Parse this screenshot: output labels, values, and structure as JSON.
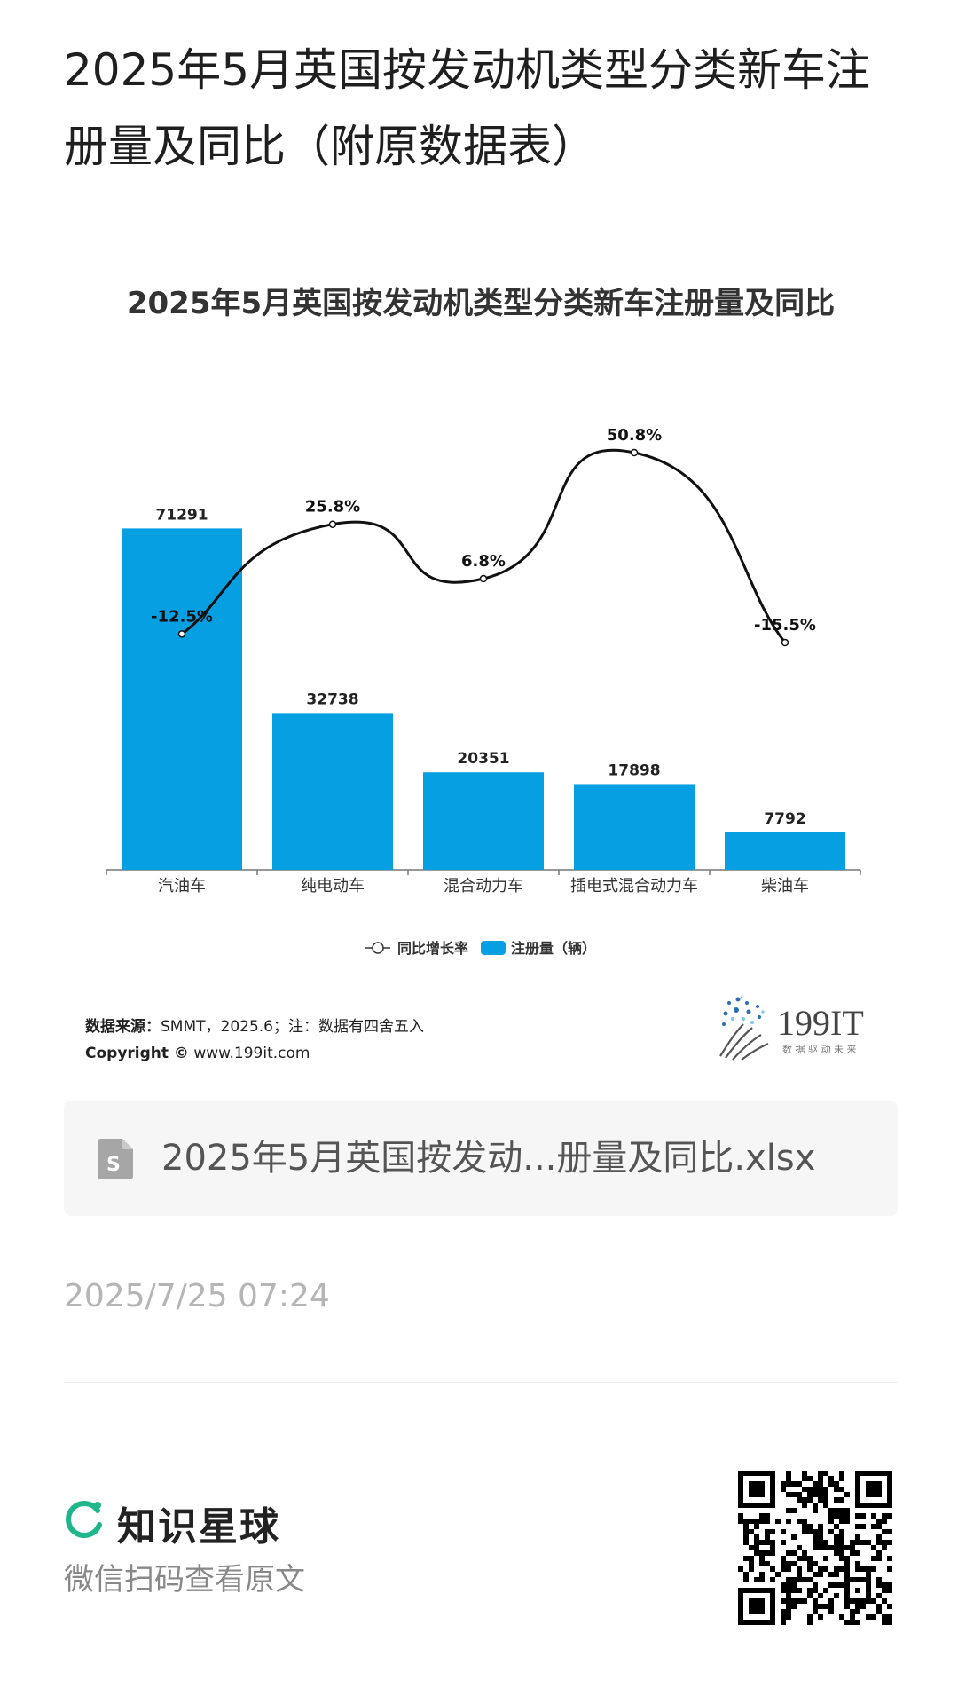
{
  "page": {
    "title": "2025年5月英国按发动机类型分类新车注册量及同比（附原数据表）"
  },
  "chart_data": {
    "type": "bar",
    "title": "2025年5月英国按发动机类型分类新车注册量及同比",
    "categories": [
      "汽油车",
      "纯电动车",
      "混合动力车",
      "插电式混合动力车",
      "柴油车"
    ],
    "series": [
      {
        "name": "注册量（辆）",
        "type": "bar",
        "values": [
          71291,
          32738,
          20351,
          17898,
          7792
        ],
        "labels": [
          "71291",
          "32738",
          "20351",
          "17898",
          "7792"
        ],
        "color": "#069FE2"
      },
      {
        "name": "同比增长率",
        "type": "line",
        "values": [
          -12.5,
          25.8,
          6.8,
          50.8,
          -15.5
        ],
        "labels": [
          "-12.5%",
          "25.8%",
          "6.8%",
          "50.8%",
          "-15.5%"
        ],
        "color": "#111111"
      }
    ],
    "legend": {
      "position": "bottom",
      "line_label": "同比增长率",
      "bar_label": "注册量（辆）"
    }
  },
  "source": {
    "label": "数据来源：",
    "text": "SMMT，2025.6；注：数据有四舍五入",
    "copyright_label": "Copyright ©",
    "copyright_text": "www.199it.com"
  },
  "logo": {
    "text": "199IT",
    "tagline": "数 据 驱 动 未 来",
    "icon": "dandelion-logo-icon"
  },
  "file": {
    "name": "2025年5月英国按发动...册量及同比.xlsx",
    "icon": "spreadsheet-file-icon"
  },
  "meta": {
    "timestamp": "2025/7/25 07:24"
  },
  "footer": {
    "brand": "知识星球",
    "hint": "微信扫码查看原文",
    "brand_icon": "planet-ring-icon",
    "qr_icon": "qr-code-icon"
  },
  "colors": {
    "bar": "#069FE2",
    "line": "#111111",
    "brand_green": "#1FB68B"
  }
}
